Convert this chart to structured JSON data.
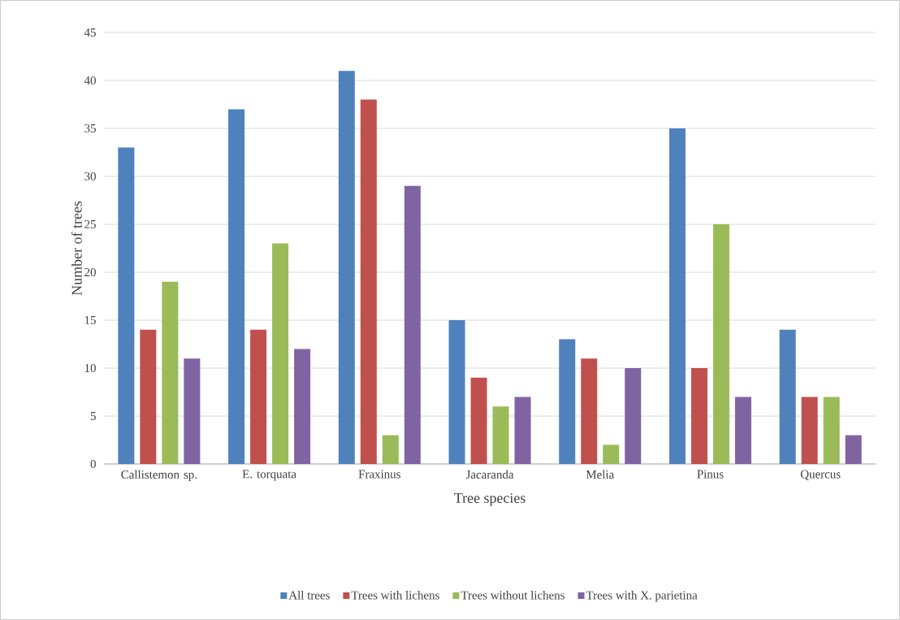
{
  "chart_data": {
    "type": "bar",
    "xlabel": "Tree species",
    "ylabel": "Number of trees",
    "categories": [
      "Callistemon sp.",
      "E. torquata",
      "Fraxinus",
      "Jacaranda",
      "Melia",
      "Pinus",
      "Quercus"
    ],
    "series": [
      {
        "name": "All trees",
        "color": "#4f81bd",
        "values": [
          33,
          37,
          41,
          15,
          13,
          35,
          14
        ]
      },
      {
        "name": "Trees with lichens",
        "color": "#c0504d",
        "values": [
          14,
          14,
          38,
          9,
          11,
          10,
          7
        ]
      },
      {
        "name": "Trees without lichens",
        "color": "#9bbb59",
        "values": [
          19,
          23,
          3,
          6,
          2,
          25,
          7
        ]
      },
      {
        "name": "Trees with X. parietina",
        "color": "#8064a2",
        "values": [
          11,
          12,
          29,
          7,
          10,
          7,
          3
        ]
      }
    ],
    "ylim": [
      0,
      45
    ],
    "yticks": [
      0,
      5,
      10,
      15,
      20,
      25,
      30,
      35,
      40,
      45
    ],
    "grid": "y",
    "legend": "bottom"
  }
}
